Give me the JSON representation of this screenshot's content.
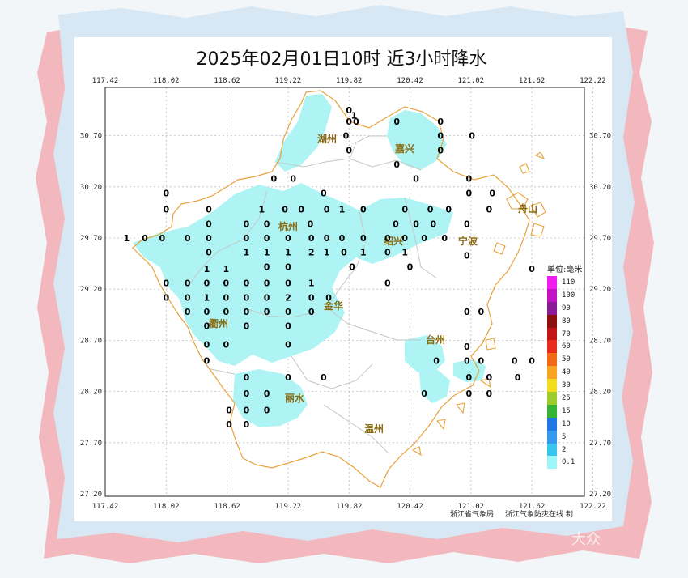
{
  "title": "2025年02月01日10时  近3小时降水",
  "axes": {
    "longitudes": [
      "117.42",
      "118.02",
      "118.62",
      "119.22",
      "119.82",
      "120.42",
      "121.02",
      "121.62",
      "122.22"
    ],
    "latitudes": [
      "30.70",
      "30.20",
      "29.70",
      "29.20",
      "28.70",
      "28.20",
      "27.70",
      "27.20"
    ]
  },
  "cities": [
    "湖州",
    "嘉兴",
    "杭州",
    "绍兴",
    "宁波",
    "舟山",
    "金华",
    "衢州",
    "台州",
    "丽水",
    "温州"
  ],
  "legend": {
    "title": "单位:毫米",
    "items": [
      {
        "label": "110",
        "color": "#f01cf0"
      },
      {
        "label": "100",
        "color": "#c012c0"
      },
      {
        "label": "90",
        "color": "#8a1a96"
      },
      {
        "label": "80",
        "color": "#8c1010"
      },
      {
        "label": "70",
        "color": "#c21414"
      },
      {
        "label": "60",
        "color": "#e82c1c"
      },
      {
        "label": "50",
        "color": "#f06a18"
      },
      {
        "label": "40",
        "color": "#f8a420"
      },
      {
        "label": "30",
        "color": "#f4dc1e"
      },
      {
        "label": "25",
        "color": "#9ccc2c"
      },
      {
        "label": "15",
        "color": "#36b436"
      },
      {
        "label": "10",
        "color": "#2276e4"
      },
      {
        "label": "5",
        "color": "#3498ec"
      },
      {
        "label": "2",
        "color": "#38c4ec"
      },
      {
        "label": "0.1",
        "color": "#9ef6f6"
      }
    ]
  },
  "stations": [
    {
      "v": "0",
      "lon": 119.82,
      "lat": 30.95
    },
    {
      "v": "1",
      "lon": 119.87,
      "lat": 30.9
    },
    {
      "v": "0",
      "lon": 119.82,
      "lat": 30.84
    },
    {
      "v": "0",
      "lon": 119.89,
      "lat": 30.84
    },
    {
      "v": "0",
      "lon": 119.79,
      "lat": 30.7
    },
    {
      "v": "0",
      "lon": 119.82,
      "lat": 30.56
    },
    {
      "v": "0",
      "lon": 120.29,
      "lat": 30.84
    },
    {
      "v": "0",
      "lon": 120.72,
      "lat": 30.84
    },
    {
      "v": "0",
      "lon": 120.72,
      "lat": 30.7
    },
    {
      "v": "0",
      "lon": 121.03,
      "lat": 30.7
    },
    {
      "v": "0",
      "lon": 120.72,
      "lat": 30.56
    },
    {
      "v": "0",
      "lon": 120.29,
      "lat": 30.42
    },
    {
      "v": "0",
      "lon": 119.08,
      "lat": 30.28
    },
    {
      "v": "0",
      "lon": 119.27,
      "lat": 30.28
    },
    {
      "v": "0",
      "lon": 120.48,
      "lat": 30.28
    },
    {
      "v": "0",
      "lon": 121.0,
      "lat": 30.28
    },
    {
      "v": "0",
      "lon": 119.57,
      "lat": 30.14
    },
    {
      "v": "0",
      "lon": 121.0,
      "lat": 30.14
    },
    {
      "v": "0",
      "lon": 121.23,
      "lat": 30.14
    },
    {
      "v": "0",
      "lon": 118.02,
      "lat": 30.14
    },
    {
      "v": "0",
      "lon": 118.02,
      "lat": 29.98
    },
    {
      "v": "0",
      "lon": 118.44,
      "lat": 29.98
    },
    {
      "v": "1",
      "lon": 118.96,
      "lat": 29.98
    },
    {
      "v": "0",
      "lon": 119.19,
      "lat": 29.98
    },
    {
      "v": "0",
      "lon": 119.35,
      "lat": 29.98
    },
    {
      "v": "0",
      "lon": 119.6,
      "lat": 29.98
    },
    {
      "v": "1",
      "lon": 119.75,
      "lat": 29.98
    },
    {
      "v": "0",
      "lon": 119.96,
      "lat": 29.98
    },
    {
      "v": "0",
      "lon": 120.37,
      "lat": 29.98
    },
    {
      "v": "0",
      "lon": 120.62,
      "lat": 29.98
    },
    {
      "v": "0",
      "lon": 120.8,
      "lat": 29.98
    },
    {
      "v": "0",
      "lon": 121.2,
      "lat": 29.98
    },
    {
      "v": "0",
      "lon": 118.44,
      "lat": 29.84
    },
    {
      "v": "0",
      "lon": 118.81,
      "lat": 29.84
    },
    {
      "v": "0",
      "lon": 119.01,
      "lat": 29.84
    },
    {
      "v": "0",
      "lon": 119.44,
      "lat": 29.84
    },
    {
      "v": "0",
      "lon": 120.28,
      "lat": 29.84
    },
    {
      "v": "0",
      "lon": 120.48,
      "lat": 29.84
    },
    {
      "v": "0",
      "lon": 120.65,
      "lat": 29.84
    },
    {
      "v": "0",
      "lon": 120.98,
      "lat": 29.84
    },
    {
      "v": "1",
      "lon": 117.63,
      "lat": 29.7
    },
    {
      "v": "0",
      "lon": 117.81,
      "lat": 29.7
    },
    {
      "v": "0",
      "lon": 117.98,
      "lat": 29.7
    },
    {
      "v": "0",
      "lon": 118.23,
      "lat": 29.7
    },
    {
      "v": "0",
      "lon": 118.44,
      "lat": 29.7
    },
    {
      "v": "0",
      "lon": 118.81,
      "lat": 29.7
    },
    {
      "v": "0",
      "lon": 119.01,
      "lat": 29.7
    },
    {
      "v": "0",
      "lon": 119.22,
      "lat": 29.7
    },
    {
      "v": "0",
      "lon": 119.45,
      "lat": 29.7
    },
    {
      "v": "0",
      "lon": 119.6,
      "lat": 29.7
    },
    {
      "v": "0",
      "lon": 119.75,
      "lat": 29.7
    },
    {
      "v": "0",
      "lon": 119.96,
      "lat": 29.7
    },
    {
      "v": "0",
      "lon": 120.2,
      "lat": 29.7
    },
    {
      "v": "0",
      "lon": 120.37,
      "lat": 29.7
    },
    {
      "v": "0",
      "lon": 120.56,
      "lat": 29.7
    },
    {
      "v": "0",
      "lon": 120.76,
      "lat": 29.7
    },
    {
      "v": "0",
      "lon": 118.44,
      "lat": 29.56
    },
    {
      "v": "1",
      "lon": 118.81,
      "lat": 29.56
    },
    {
      "v": "1",
      "lon": 119.01,
      "lat": 29.56
    },
    {
      "v": "1",
      "lon": 119.22,
      "lat": 29.56
    },
    {
      "v": "2",
      "lon": 119.45,
      "lat": 29.56
    },
    {
      "v": "1",
      "lon": 119.6,
      "lat": 29.56
    },
    {
      "v": "0",
      "lon": 119.77,
      "lat": 29.56
    },
    {
      "v": "1",
      "lon": 119.96,
      "lat": 29.56
    },
    {
      "v": "0",
      "lon": 120.2,
      "lat": 29.56
    },
    {
      "v": "1",
      "lon": 120.37,
      "lat": 29.56
    },
    {
      "v": "0",
      "lon": 120.98,
      "lat": 29.53
    },
    {
      "v": "0",
      "lon": 119.01,
      "lat": 29.42
    },
    {
      "v": "0",
      "lon": 119.22,
      "lat": 29.42
    },
    {
      "v": "0",
      "lon": 119.85,
      "lat": 29.42
    },
    {
      "v": "0",
      "lon": 120.42,
      "lat": 29.42
    },
    {
      "v": "0",
      "lon": 121.62,
      "lat": 29.4
    },
    {
      "v": "1",
      "lon": 118.42,
      "lat": 29.4
    },
    {
      "v": "1",
      "lon": 118.61,
      "lat": 29.4
    },
    {
      "v": "0",
      "lon": 118.02,
      "lat": 29.26
    },
    {
      "v": "0",
      "lon": 118.23,
      "lat": 29.26
    },
    {
      "v": "0",
      "lon": 118.42,
      "lat": 29.26
    },
    {
      "v": "0",
      "lon": 118.61,
      "lat": 29.26
    },
    {
      "v": "0",
      "lon": 118.81,
      "lat": 29.26
    },
    {
      "v": "0",
      "lon": 119.01,
      "lat": 29.26
    },
    {
      "v": "0",
      "lon": 119.22,
      "lat": 29.26
    },
    {
      "v": "1",
      "lon": 119.45,
      "lat": 29.26
    },
    {
      "v": "0",
      "lon": 120.2,
      "lat": 29.26
    },
    {
      "v": "0",
      "lon": 118.02,
      "lat": 29.12
    },
    {
      "v": "0",
      "lon": 118.23,
      "lat": 29.12
    },
    {
      "v": "1",
      "lon": 118.42,
      "lat": 29.12
    },
    {
      "v": "0",
      "lon": 118.61,
      "lat": 29.12
    },
    {
      "v": "0",
      "lon": 118.81,
      "lat": 29.12
    },
    {
      "v": "0",
      "lon": 119.01,
      "lat": 29.12
    },
    {
      "v": "2",
      "lon": 119.22,
      "lat": 29.12
    },
    {
      "v": "0",
      "lon": 119.45,
      "lat": 29.12
    },
    {
      "v": "0",
      "lon": 119.62,
      "lat": 29.12
    },
    {
      "v": "0",
      "lon": 118.23,
      "lat": 28.98
    },
    {
      "v": "0",
      "lon": 118.42,
      "lat": 28.98
    },
    {
      "v": "0",
      "lon": 118.61,
      "lat": 28.98
    },
    {
      "v": "0",
      "lon": 118.81,
      "lat": 28.98
    },
    {
      "v": "0",
      "lon": 119.01,
      "lat": 28.98
    },
    {
      "v": "0",
      "lon": 119.22,
      "lat": 28.98
    },
    {
      "v": "0",
      "lon": 119.45,
      "lat": 28.98
    },
    {
      "v": "0",
      "lon": 120.98,
      "lat": 28.98
    },
    {
      "v": "0",
      "lon": 121.12,
      "lat": 28.98
    },
    {
      "v": "0",
      "lon": 118.42,
      "lat": 28.84
    },
    {
      "v": "0",
      "lon": 118.81,
      "lat": 28.84
    },
    {
      "v": "0",
      "lon": 119.22,
      "lat": 28.84
    },
    {
      "v": "0",
      "lon": 118.42,
      "lat": 28.66
    },
    {
      "v": "0",
      "lon": 118.61,
      "lat": 28.66
    },
    {
      "v": "0",
      "lon": 119.22,
      "lat": 28.66
    },
    {
      "v": "0",
      "lon": 120.98,
      "lat": 28.64
    },
    {
      "v": "0",
      "lon": 118.42,
      "lat": 28.5
    },
    {
      "v": "0",
      "lon": 120.68,
      "lat": 28.5
    },
    {
      "v": "0",
      "lon": 120.98,
      "lat": 28.5
    },
    {
      "v": "0",
      "lon": 121.12,
      "lat": 28.5
    },
    {
      "v": "0",
      "lon": 121.45,
      "lat": 28.5
    },
    {
      "v": "0",
      "lon": 121.62,
      "lat": 28.5
    },
    {
      "v": "0",
      "lon": 118.81,
      "lat": 28.34
    },
    {
      "v": "0",
      "lon": 119.22,
      "lat": 28.34
    },
    {
      "v": "0",
      "lon": 119.57,
      "lat": 28.34
    },
    {
      "v": "0",
      "lon": 121.0,
      "lat": 28.34
    },
    {
      "v": "0",
      "lon": 121.2,
      "lat": 28.34
    },
    {
      "v": "0",
      "lon": 121.48,
      "lat": 28.34
    },
    {
      "v": "0",
      "lon": 118.81,
      "lat": 28.18
    },
    {
      "v": "0",
      "lon": 119.01,
      "lat": 28.18
    },
    {
      "v": "0",
      "lon": 120.56,
      "lat": 28.18
    },
    {
      "v": "0",
      "lon": 121.0,
      "lat": 28.18
    },
    {
      "v": "0",
      "lon": 121.2,
      "lat": 28.18
    },
    {
      "v": "0",
      "lon": 118.64,
      "lat": 28.02
    },
    {
      "v": "0",
      "lon": 118.81,
      "lat": 28.02
    },
    {
      "v": "0",
      "lon": 119.01,
      "lat": 28.02
    },
    {
      "v": "0",
      "lon": 118.64,
      "lat": 27.88
    },
    {
      "v": "0",
      "lon": 118.81,
      "lat": 27.88
    }
  ],
  "credits": {
    "left": "浙江省气象局",
    "right": "浙江气象防灾在线  制"
  },
  "watermark": "大众"
}
